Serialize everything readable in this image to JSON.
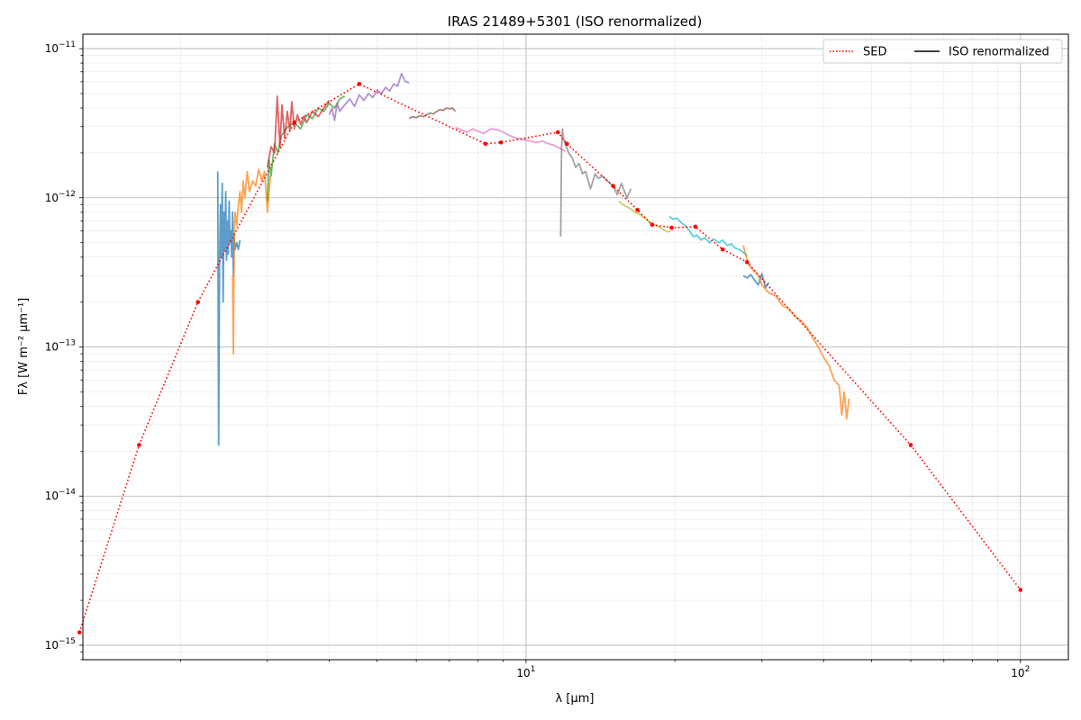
{
  "chart_data": {
    "type": "line",
    "title": "IRAS 21489+5301 (ISO renormalized)",
    "xlabel": "λ [μm]",
    "ylabel": "Fλ [W m⁻² μm⁻¹]",
    "xscale": "log",
    "yscale": "log",
    "xlim": [
      1.27,
      125
    ],
    "ylim": [
      8e-16,
      1.25e-11
    ],
    "x_ticks": [
      {
        "value": 10,
        "mantissa": "10",
        "exp": "1"
      },
      {
        "value": 100,
        "mantissa": "10",
        "exp": "2"
      }
    ],
    "y_ticks": [
      {
        "value": 1e-15,
        "mantissa": "10",
        "exp": "−15"
      },
      {
        "value": 1e-14,
        "mantissa": "10",
        "exp": "−14"
      },
      {
        "value": 1e-13,
        "mantissa": "10",
        "exp": "−13"
      },
      {
        "value": 1e-12,
        "mantissa": "10",
        "exp": "−12"
      },
      {
        "value": 1e-11,
        "mantissa": "10",
        "exp": "−11"
      }
    ],
    "grid": true,
    "legend": {
      "placement": "top-right",
      "entries": [
        {
          "label": "SED",
          "style": "dotted",
          "color": "#ff0000"
        },
        {
          "label": "ISO renormalized",
          "style": "solid",
          "color": "#000000"
        }
      ]
    },
    "sed": {
      "name": "SED",
      "color": "#ff0000",
      "x": [
        1.25,
        1.65,
        2.17,
        3.4,
        4.6,
        8.28,
        8.9,
        11.6,
        12.1,
        15.0,
        16.8,
        18.0,
        19.7,
        22.0,
        25.0,
        28.0,
        60.0,
        100.0
      ],
      "y": [
        1.22e-15,
        2.2e-14,
        2e-13,
        3.2e-12,
        5.8e-12,
        2.3e-12,
        2.35e-12,
        2.75e-12,
        2.3e-12,
        1.2e-12,
        8.3e-13,
        6.6e-13,
        6.3e-13,
        6.4e-13,
        4.5e-13,
        3.7e-13,
        2.2e-14,
        2.35e-15
      ]
    },
    "spectra": [
      {
        "color": "#1f77b4",
        "x": [
          2.38,
          2.39,
          2.4,
          2.41,
          2.42,
          2.43,
          2.44,
          2.45,
          2.46,
          2.47,
          2.48,
          2.49,
          2.5,
          2.51,
          2.52,
          2.53,
          2.54,
          2.55,
          2.56,
          2.57,
          2.58,
          2.6,
          2.62,
          2.64
        ],
        "y": [
          1.5e-12,
          2.2e-14,
          3.5e-13,
          9e-13,
          4e-13,
          1.25e-12,
          2e-13,
          8e-13,
          4.5e-13,
          1.1e-12,
          3.8e-13,
          7e-13,
          4.2e-13,
          9.5e-13,
          5e-13,
          6e-13,
          4e-13,
          8e-13,
          3e-13,
          5.5e-13,
          4.5e-13,
          5e-13,
          4.5e-13,
          5.2e-13
        ]
      },
      {
        "color": "#ff7f0e",
        "x": [
          2.55,
          2.56,
          2.57,
          2.58,
          2.6,
          2.62,
          2.64,
          2.66,
          2.68,
          2.7,
          2.73,
          2.76,
          2.8,
          2.84,
          2.88,
          2.92,
          2.96,
          3.0,
          3.04
        ],
        "y": [
          3e-13,
          9e-14,
          6e-13,
          8e-13,
          6.5e-13,
          9e-13,
          1.1e-12,
          8e-13,
          1.3e-12,
          1e-12,
          1.5e-12,
          1.1e-12,
          1.3e-12,
          1.2e-12,
          1.55e-12,
          1.3e-12,
          1.5e-12,
          8e-13,
          1.4e-12
        ]
      },
      {
        "color": "#2ca02c",
        "x": [
          3.0,
          3.02,
          3.05,
          3.1,
          3.15,
          3.2,
          3.3,
          3.4,
          3.5,
          3.6,
          3.7,
          3.8,
          3.9,
          4.0,
          4.1,
          4.2,
          4.3
        ],
        "y": [
          9.5e-13,
          1.8e-12,
          1.4e-12,
          2.3e-12,
          2e-12,
          2.6e-12,
          3e-12,
          3.2e-12,
          2.9e-12,
          3.6e-12,
          3.4e-12,
          4e-12,
          3.8e-12,
          4.3e-12,
          4e-12,
          4.6e-12,
          4.8e-12
        ]
      },
      {
        "color": "#d62728",
        "x": [
          3.0,
          3.05,
          3.1,
          3.14,
          3.18,
          3.21,
          3.25,
          3.29,
          3.33,
          3.36,
          3.4,
          3.45,
          3.5,
          3.55,
          3.6,
          3.7,
          3.8,
          3.9,
          4.0
        ],
        "y": [
          1.6e-12,
          2.2e-12,
          2e-12,
          4.8e-12,
          2.2e-12,
          4.2e-12,
          2.5e-12,
          3.8e-12,
          2.8e-12,
          4.4e-12,
          2.9e-12,
          3.6e-12,
          3.1e-12,
          3.5e-12,
          3.2e-12,
          3.8e-12,
          3.5e-12,
          4e-12,
          4.5e-12
        ]
      },
      {
        "color": "#9467bd",
        "x": [
          4.0,
          4.05,
          4.1,
          4.15,
          4.2,
          4.3,
          4.4,
          4.5,
          4.6,
          4.7,
          4.8,
          4.9,
          5.0,
          5.1,
          5.2,
          5.3,
          5.4,
          5.5,
          5.6,
          5.7,
          5.8
        ],
        "y": [
          3.6e-12,
          4e-12,
          3.3e-12,
          4.3e-12,
          3.8e-12,
          4.2e-12,
          4.6e-12,
          4.1e-12,
          4.9e-12,
          4.5e-12,
          5e-12,
          4.7e-12,
          5.3e-12,
          5e-12,
          5.5e-12,
          5.2e-12,
          5.8e-12,
          5.6e-12,
          6.8e-12,
          6e-12,
          5.9e-12
        ]
      },
      {
        "color": "#8c564b",
        "x": [
          5.8,
          5.9,
          6.0,
          6.1,
          6.2,
          6.3,
          6.4,
          6.5,
          6.6,
          6.7,
          6.8,
          6.9,
          7.0,
          7.1,
          7.2
        ],
        "y": [
          3.4e-12,
          3.5e-12,
          3.45e-12,
          3.55e-12,
          3.5e-12,
          3.6e-12,
          3.7e-12,
          3.65e-12,
          3.8e-12,
          3.9e-12,
          3.85e-12,
          4e-12,
          3.95e-12,
          4e-12,
          3.8e-12
        ]
      },
      {
        "color": "#e377c2",
        "x": [
          7.2,
          7.4,
          7.6,
          7.8,
          8.0,
          8.2,
          8.5,
          8.8,
          9.0,
          9.3,
          9.6,
          9.9,
          10.2,
          10.5,
          10.8,
          11.1,
          11.4,
          11.7,
          12.0
        ],
        "y": [
          2.95e-12,
          2.85e-12,
          2.75e-12,
          2.9e-12,
          2.8e-12,
          2.7e-12,
          2.9e-12,
          2.85e-12,
          2.75e-12,
          2.6e-12,
          2.5e-12,
          2.45e-12,
          2.4e-12,
          2.35e-12,
          2.4e-12,
          2.3e-12,
          2.25e-12,
          2.15e-12,
          2.05e-12
        ]
      },
      {
        "color": "#7f7f7f",
        "x": [
          11.75,
          11.8,
          11.85,
          11.9,
          12.0,
          12.2,
          12.4,
          12.6,
          12.8,
          13.0,
          13.2,
          13.5,
          13.8,
          14.0,
          14.3,
          14.6,
          15.0,
          15.3,
          15.6,
          16.0,
          16.3
        ],
        "y": [
          5.5e-13,
          2.2e-12,
          2.9e-12,
          2.5e-12,
          2.3e-12,
          2e-12,
          1.85e-12,
          1.6e-12,
          1.7e-12,
          1.45e-12,
          1.5e-12,
          1.15e-12,
          1.45e-12,
          1.35e-12,
          1.4e-12,
          1.3e-12,
          1.2e-12,
          1.05e-12,
          1.25e-12,
          1e-12,
          1.15e-12
        ]
      },
      {
        "color": "#bcbd22",
        "x": [
          15.4,
          15.7,
          16.0,
          16.3,
          16.6,
          16.9,
          17.2,
          17.5,
          17.8,
          18.1,
          18.4,
          18.7,
          19.0,
          19.3,
          19.6
        ],
        "y": [
          9.5e-13,
          9e-13,
          8.7e-13,
          8.4e-13,
          8e-13,
          7.8e-13,
          7.5e-13,
          7.2e-13,
          6.8e-13,
          6.6e-13,
          6.5e-13,
          6.3e-13,
          6.1e-13,
          5.9e-13,
          6e-13
        ]
      },
      {
        "color": "#17becf",
        "x": [
          19.5,
          19.8,
          20.2,
          20.6,
          21.0,
          21.4,
          21.8,
          22.2,
          22.6,
          23.0,
          23.5,
          24.0,
          24.5,
          25.0,
          25.5,
          26.0,
          26.5,
          27.0,
          27.5,
          28.0
        ],
        "y": [
          7.5e-13,
          7.2e-13,
          7.3e-13,
          6.8e-13,
          6.5e-13,
          6e-13,
          5.5e-13,
          5.6e-13,
          5.2e-13,
          5.4e-13,
          5e-13,
          5.3e-13,
          5e-13,
          5.2e-13,
          4.8e-13,
          4.9e-13,
          4.6e-13,
          4.5e-13,
          4.3e-13,
          4.1e-13
        ]
      },
      {
        "color": "#1f77b4",
        "x": [
          27.5,
          28.0,
          28.5,
          29.0,
          29.5,
          30.0,
          30.5,
          31.0
        ],
        "y": [
          3e-13,
          2.9e-13,
          3.05e-13,
          2.8e-13,
          2.6e-13,
          3.1e-13,
          2.5e-13,
          2.7e-13
        ]
      },
      {
        "color": "#ff7f0e",
        "x": [
          27.5,
          28.0,
          28.5,
          29.0,
          29.5,
          30.0,
          31.0,
          32.0,
          33.0,
          34.0,
          35.0,
          36.0,
          37.0,
          38.0,
          39.0,
          40.0,
          41.0,
          42.0,
          43.0,
          43.5,
          44.0,
          44.5,
          45.0
        ],
        "y": [
          4.8e-13,
          3.8e-13,
          3.4e-13,
          3.2e-13,
          3e-13,
          2.6e-13,
          2.3e-13,
          2.2e-13,
          1.9e-13,
          1.8e-13,
          1.6e-13,
          1.5e-13,
          1.35e-13,
          1.15e-13,
          1e-13,
          8.5e-14,
          7.5e-14,
          6e-14,
          5.5e-14,
          3.5e-14,
          5e-14,
          3.3e-14,
          4.5e-14
        ]
      }
    ]
  }
}
